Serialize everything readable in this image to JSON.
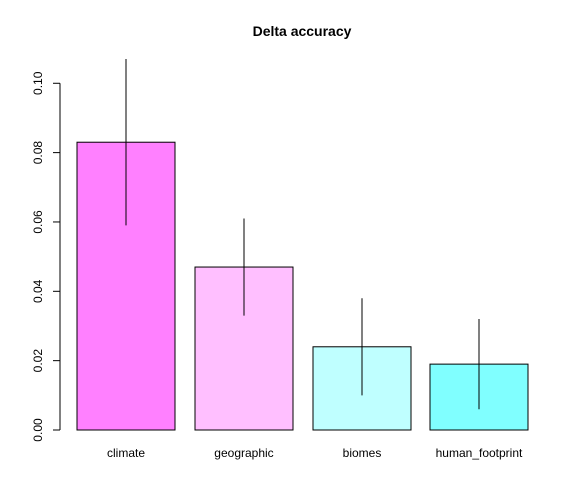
{
  "chart_data": {
    "type": "bar",
    "title": "Delta accuracy",
    "xlabel": "",
    "ylabel": "",
    "categories": [
      "climate",
      "geographic",
      "biomes",
      "human_footprint"
    ],
    "values": [
      0.083,
      0.047,
      0.024,
      0.019
    ],
    "error_low": [
      0.059,
      0.033,
      0.01,
      0.006
    ],
    "error_high": [
      0.107,
      0.061,
      0.038,
      0.032
    ],
    "colors": [
      "#ff80ff",
      "#ffbfff",
      "#bfffff",
      "#80ffff"
    ],
    "ylim": [
      0,
      0.107
    ],
    "yticks": [
      "0.00",
      "0.02",
      "0.04",
      "0.06",
      "0.08",
      "0.10"
    ],
    "ytick_values": [
      0,
      0.02,
      0.04,
      0.06,
      0.08,
      0.1
    ],
    "grid": false,
    "legend": "none"
  }
}
